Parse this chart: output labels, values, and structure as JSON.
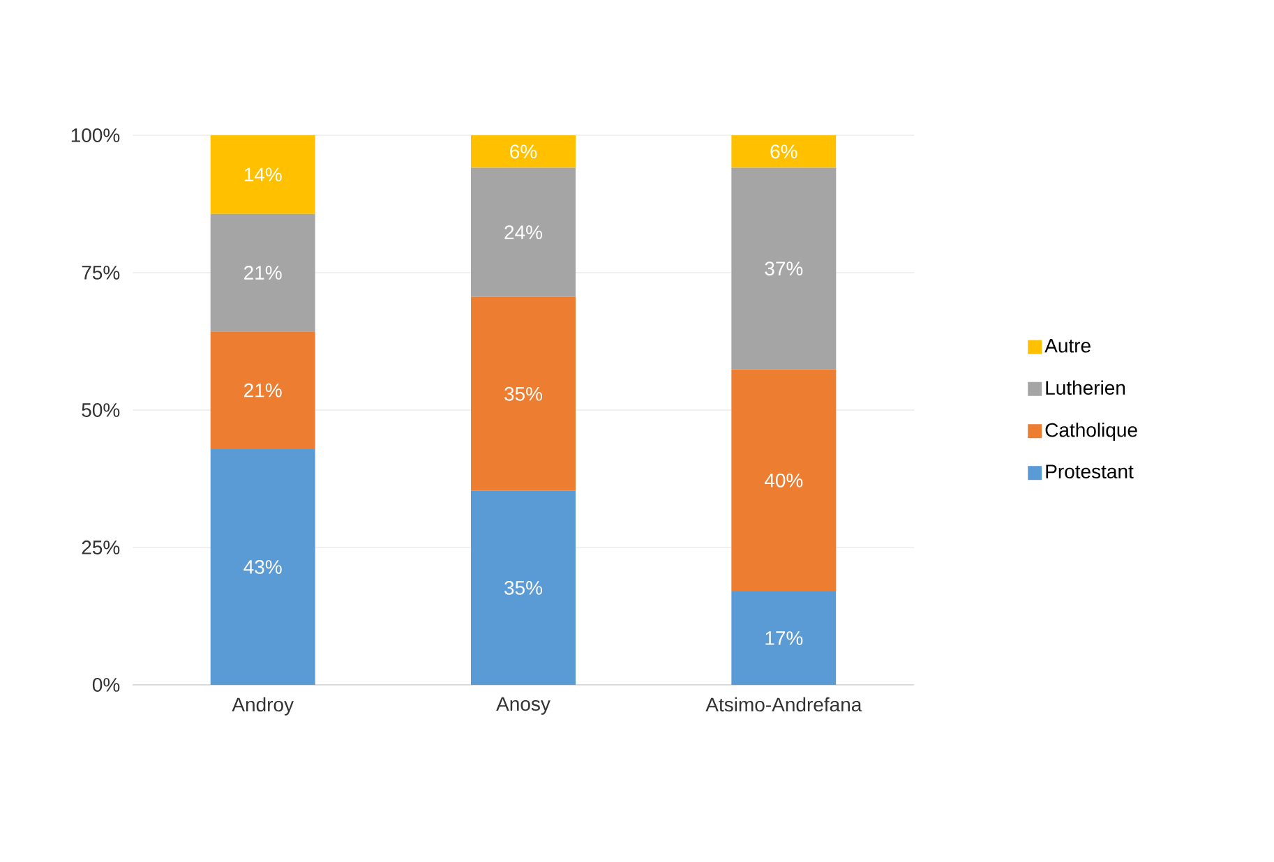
{
  "chart_data": {
    "type": "bar",
    "stacked": true,
    "categories": [
      "Androy",
      "Anosy",
      "Atsimo-Andrefana"
    ],
    "series": [
      {
        "name": "Protestant",
        "color": "#5b9bd5",
        "values": [
          42.9,
          35.3,
          17.0
        ],
        "value_labels": [
          "43%",
          "35%",
          "17%"
        ]
      },
      {
        "name": "Catholique",
        "color": "#ed7d31",
        "values": [
          21.4,
          35.3,
          40.4
        ],
        "value_labels": [
          "21%",
          "35%",
          "40%"
        ]
      },
      {
        "name": "Lutherien",
        "color": "#a5a5a5",
        "values": [
          21.4,
          23.5,
          36.7
        ],
        "value_labels": [
          "21%",
          "24%",
          "37%"
        ]
      },
      {
        "name": "Autre",
        "color": "#ffc000",
        "values": [
          14.3,
          5.9,
          5.9
        ],
        "value_labels": [
          "14%",
          "6%",
          "6%"
        ]
      }
    ],
    "ylim": [
      0,
      100
    ],
    "yticks": [
      {
        "value": 0,
        "label": "0%"
      },
      {
        "value": 25,
        "label": "25%"
      },
      {
        "value": 50,
        "label": "50%"
      },
      {
        "value": 75,
        "label": "75%"
      },
      {
        "value": 100,
        "label": "100%"
      }
    ],
    "grid": "y",
    "legend": "right"
  }
}
